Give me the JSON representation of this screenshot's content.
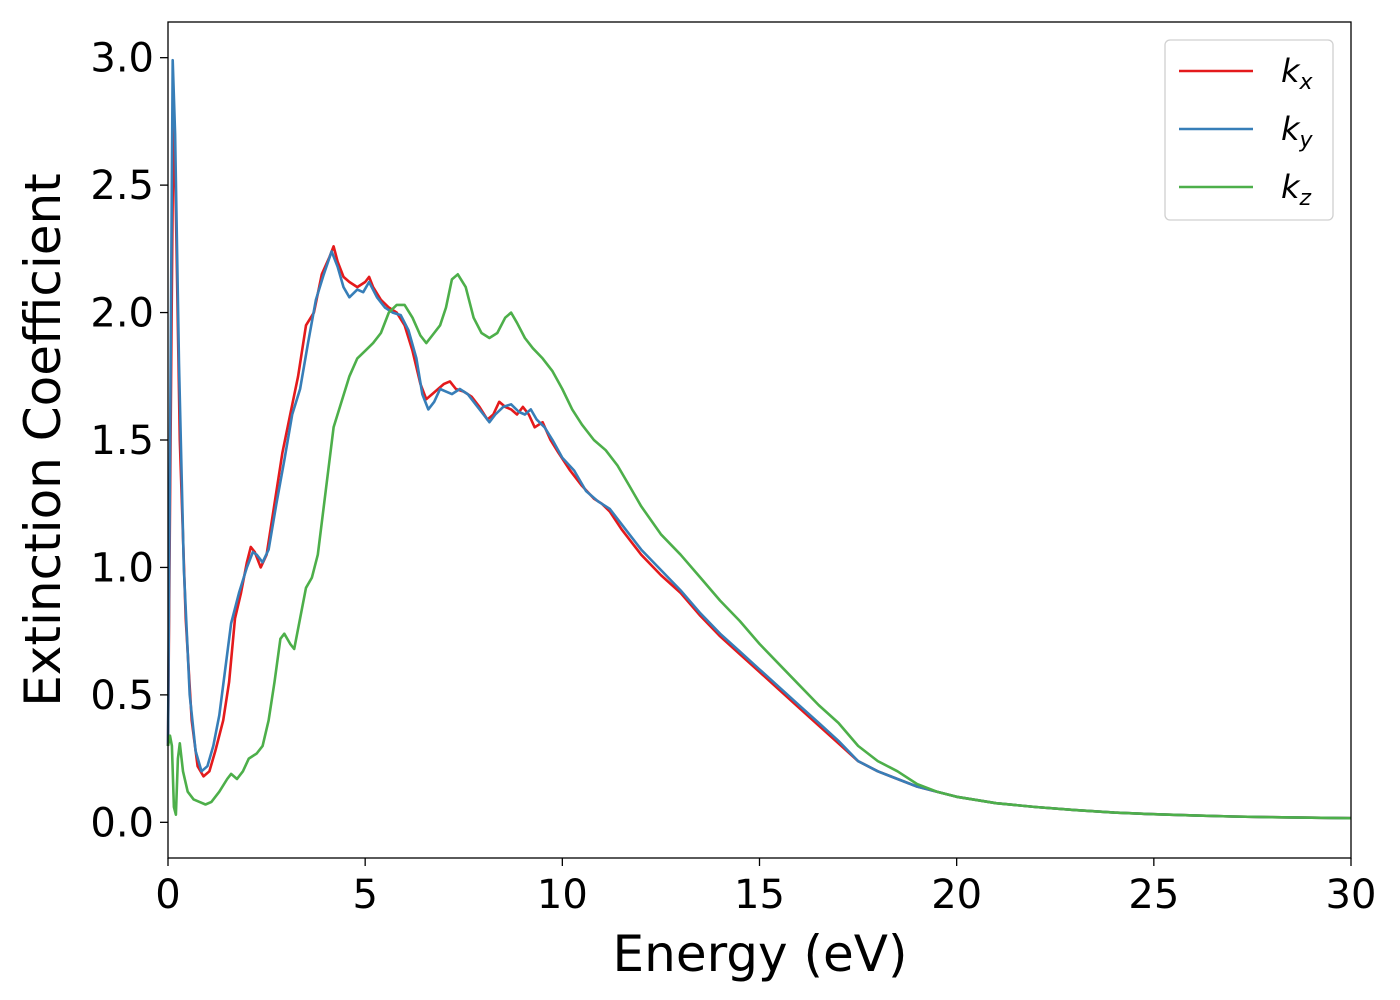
{
  "chart_data": {
    "type": "line",
    "xlabel": "Energy (eV)",
    "ylabel": "Extinction Coefficient",
    "xlim": [
      0,
      30
    ],
    "ylim": [
      -0.14,
      3.14
    ],
    "xticks": [
      0,
      5,
      10,
      15,
      20,
      25,
      30
    ],
    "yticks": [
      0.0,
      0.5,
      1.0,
      1.5,
      2.0,
      2.5,
      3.0
    ],
    "xtick_labels": [
      "0",
      "5",
      "10",
      "15",
      "20",
      "25",
      "30"
    ],
    "ytick_labels": [
      "0.0",
      "0.5",
      "1.0",
      "1.5",
      "2.0",
      "2.5",
      "3.0"
    ],
    "grid": false,
    "legend_position": "top-right",
    "series": [
      {
        "name": "k_x",
        "legend_main": "k",
        "legend_sub": "x",
        "color": "#e41a1c",
        "points": [
          [
            0,
            0.3
          ],
          [
            0.08,
            1.8
          ],
          [
            0.14,
            2.82
          ],
          [
            0.2,
            2.4
          ],
          [
            0.3,
            1.5
          ],
          [
            0.45,
            0.8
          ],
          [
            0.6,
            0.4
          ],
          [
            0.75,
            0.22
          ],
          [
            0.9,
            0.18
          ],
          [
            1.05,
            0.2
          ],
          [
            1.2,
            0.28
          ],
          [
            1.4,
            0.4
          ],
          [
            1.55,
            0.55
          ],
          [
            1.7,
            0.8
          ],
          [
            1.85,
            0.9
          ],
          [
            2.0,
            1.02
          ],
          [
            2.1,
            1.08
          ],
          [
            2.2,
            1.06
          ],
          [
            2.35,
            1.0
          ],
          [
            2.5,
            1.05
          ],
          [
            2.7,
            1.25
          ],
          [
            2.9,
            1.45
          ],
          [
            3.1,
            1.6
          ],
          [
            3.3,
            1.75
          ],
          [
            3.5,
            1.95
          ],
          [
            3.7,
            2.0
          ],
          [
            3.9,
            2.15
          ],
          [
            4.1,
            2.22
          ],
          [
            4.2,
            2.26
          ],
          [
            4.3,
            2.2
          ],
          [
            4.45,
            2.14
          ],
          [
            4.6,
            2.12
          ],
          [
            4.8,
            2.1
          ],
          [
            5.0,
            2.12
          ],
          [
            5.1,
            2.14
          ],
          [
            5.2,
            2.1
          ],
          [
            5.4,
            2.05
          ],
          [
            5.6,
            2.02
          ],
          [
            5.8,
            2.0
          ],
          [
            6.0,
            1.95
          ],
          [
            6.2,
            1.85
          ],
          [
            6.4,
            1.72
          ],
          [
            6.55,
            1.66
          ],
          [
            6.7,
            1.68
          ],
          [
            6.85,
            1.7
          ],
          [
            7.0,
            1.72
          ],
          [
            7.15,
            1.73
          ],
          [
            7.3,
            1.7
          ],
          [
            7.5,
            1.69
          ],
          [
            7.7,
            1.67
          ],
          [
            7.9,
            1.63
          ],
          [
            8.1,
            1.58
          ],
          [
            8.25,
            1.6
          ],
          [
            8.4,
            1.65
          ],
          [
            8.55,
            1.63
          ],
          [
            8.7,
            1.62
          ],
          [
            8.85,
            1.6
          ],
          [
            9.0,
            1.63
          ],
          [
            9.15,
            1.6
          ],
          [
            9.3,
            1.55
          ],
          [
            9.5,
            1.57
          ],
          [
            9.7,
            1.5
          ],
          [
            9.9,
            1.45
          ],
          [
            10.2,
            1.38
          ],
          [
            10.5,
            1.32
          ],
          [
            10.8,
            1.27
          ],
          [
            11.0,
            1.25
          ],
          [
            11.2,
            1.22
          ],
          [
            11.5,
            1.15
          ],
          [
            12.0,
            1.05
          ],
          [
            12.5,
            0.97
          ],
          [
            13.0,
            0.9
          ],
          [
            13.5,
            0.81
          ],
          [
            14.0,
            0.73
          ],
          [
            14.5,
            0.66
          ],
          [
            15.0,
            0.59
          ],
          [
            15.5,
            0.52
          ],
          [
            16.0,
            0.45
          ],
          [
            16.5,
            0.38
          ],
          [
            17.0,
            0.31
          ],
          [
            17.5,
            0.24
          ],
          [
            18.0,
            0.2
          ],
          [
            18.5,
            0.17
          ],
          [
            19.0,
            0.14
          ],
          [
            19.5,
            0.12
          ],
          [
            20.0,
            0.1
          ],
          [
            21.0,
            0.075
          ],
          [
            22.0,
            0.06
          ],
          [
            23.0,
            0.048
          ],
          [
            24.0,
            0.038
          ],
          [
            25.0,
            0.032
          ],
          [
            26.0,
            0.027
          ],
          [
            27.0,
            0.023
          ],
          [
            28.0,
            0.02
          ],
          [
            29.0,
            0.018
          ],
          [
            30.0,
            0.016
          ]
        ]
      },
      {
        "name": "k_y",
        "legend_main": "k",
        "legend_sub": "y",
        "color": "#377eb8",
        "points": [
          [
            0,
            0.3
          ],
          [
            0.07,
            1.9
          ],
          [
            0.12,
            2.99
          ],
          [
            0.18,
            2.7
          ],
          [
            0.28,
            1.8
          ],
          [
            0.4,
            1.0
          ],
          [
            0.55,
            0.5
          ],
          [
            0.7,
            0.28
          ],
          [
            0.85,
            0.2
          ],
          [
            1.0,
            0.22
          ],
          [
            1.15,
            0.3
          ],
          [
            1.3,
            0.42
          ],
          [
            1.45,
            0.6
          ],
          [
            1.6,
            0.78
          ],
          [
            1.8,
            0.9
          ],
          [
            2.0,
            1.0
          ],
          [
            2.15,
            1.06
          ],
          [
            2.25,
            1.05
          ],
          [
            2.4,
            1.02
          ],
          [
            2.55,
            1.07
          ],
          [
            2.75,
            1.25
          ],
          [
            2.95,
            1.42
          ],
          [
            3.15,
            1.6
          ],
          [
            3.35,
            1.7
          ],
          [
            3.55,
            1.88
          ],
          [
            3.75,
            2.05
          ],
          [
            3.95,
            2.15
          ],
          [
            4.15,
            2.24
          ],
          [
            4.3,
            2.18
          ],
          [
            4.45,
            2.1
          ],
          [
            4.6,
            2.06
          ],
          [
            4.8,
            2.09
          ],
          [
            4.95,
            2.08
          ],
          [
            5.1,
            2.12
          ],
          [
            5.3,
            2.06
          ],
          [
            5.5,
            2.02
          ],
          [
            5.7,
            2.0
          ],
          [
            5.9,
            1.99
          ],
          [
            6.1,
            1.93
          ],
          [
            6.3,
            1.82
          ],
          [
            6.45,
            1.68
          ],
          [
            6.6,
            1.62
          ],
          [
            6.75,
            1.65
          ],
          [
            6.9,
            1.7
          ],
          [
            7.05,
            1.69
          ],
          [
            7.2,
            1.68
          ],
          [
            7.4,
            1.7
          ],
          [
            7.6,
            1.68
          ],
          [
            7.8,
            1.64
          ],
          [
            8.0,
            1.6
          ],
          [
            8.15,
            1.57
          ],
          [
            8.3,
            1.6
          ],
          [
            8.5,
            1.63
          ],
          [
            8.7,
            1.64
          ],
          [
            8.9,
            1.61
          ],
          [
            9.05,
            1.6
          ],
          [
            9.2,
            1.62
          ],
          [
            9.35,
            1.58
          ],
          [
            9.55,
            1.55
          ],
          [
            9.75,
            1.5
          ],
          [
            10.0,
            1.43
          ],
          [
            10.3,
            1.38
          ],
          [
            10.6,
            1.3
          ],
          [
            10.9,
            1.26
          ],
          [
            11.2,
            1.23
          ],
          [
            11.6,
            1.15
          ],
          [
            12.0,
            1.07
          ],
          [
            12.5,
            0.99
          ],
          [
            13.0,
            0.91
          ],
          [
            13.5,
            0.82
          ],
          [
            14.0,
            0.74
          ],
          [
            14.5,
            0.67
          ],
          [
            15.0,
            0.6
          ],
          [
            15.5,
            0.53
          ],
          [
            16.0,
            0.46
          ],
          [
            16.5,
            0.39
          ],
          [
            17.0,
            0.32
          ],
          [
            17.5,
            0.24
          ],
          [
            18.0,
            0.2
          ],
          [
            18.5,
            0.17
          ],
          [
            19.0,
            0.14
          ],
          [
            19.5,
            0.12
          ],
          [
            20.0,
            0.1
          ],
          [
            21.0,
            0.075
          ],
          [
            22.0,
            0.06
          ],
          [
            23.0,
            0.048
          ],
          [
            24.0,
            0.038
          ],
          [
            25.0,
            0.032
          ],
          [
            26.0,
            0.027
          ],
          [
            27.0,
            0.023
          ],
          [
            28.0,
            0.02
          ],
          [
            29.0,
            0.018
          ],
          [
            30.0,
            0.016
          ]
        ]
      },
      {
        "name": "k_z",
        "legend_main": "k",
        "legend_sub": "z",
        "color": "#4daf4a",
        "points": [
          [
            0,
            0.3
          ],
          [
            0.05,
            0.34
          ],
          [
            0.1,
            0.3
          ],
          [
            0.15,
            0.06
          ],
          [
            0.2,
            0.03
          ],
          [
            0.25,
            0.25
          ],
          [
            0.3,
            0.31
          ],
          [
            0.38,
            0.2
          ],
          [
            0.5,
            0.12
          ],
          [
            0.65,
            0.09
          ],
          [
            0.8,
            0.08
          ],
          [
            0.95,
            0.07
          ],
          [
            1.1,
            0.08
          ],
          [
            1.3,
            0.12
          ],
          [
            1.5,
            0.17
          ],
          [
            1.6,
            0.19
          ],
          [
            1.75,
            0.17
          ],
          [
            1.9,
            0.2
          ],
          [
            2.05,
            0.25
          ],
          [
            2.25,
            0.27
          ],
          [
            2.4,
            0.3
          ],
          [
            2.55,
            0.4
          ],
          [
            2.7,
            0.55
          ],
          [
            2.85,
            0.72
          ],
          [
            2.95,
            0.74
          ],
          [
            3.1,
            0.7
          ],
          [
            3.2,
            0.68
          ],
          [
            3.35,
            0.8
          ],
          [
            3.5,
            0.92
          ],
          [
            3.65,
            0.96
          ],
          [
            3.8,
            1.05
          ],
          [
            4.0,
            1.3
          ],
          [
            4.2,
            1.55
          ],
          [
            4.4,
            1.65
          ],
          [
            4.6,
            1.75
          ],
          [
            4.8,
            1.82
          ],
          [
            5.0,
            1.85
          ],
          [
            5.2,
            1.88
          ],
          [
            5.4,
            1.92
          ],
          [
            5.6,
            2.0
          ],
          [
            5.8,
            2.03
          ],
          [
            6.0,
            2.03
          ],
          [
            6.2,
            1.98
          ],
          [
            6.4,
            1.91
          ],
          [
            6.55,
            1.88
          ],
          [
            6.7,
            1.91
          ],
          [
            6.9,
            1.95
          ],
          [
            7.05,
            2.02
          ],
          [
            7.2,
            2.13
          ],
          [
            7.35,
            2.15
          ],
          [
            7.55,
            2.1
          ],
          [
            7.75,
            1.98
          ],
          [
            7.95,
            1.92
          ],
          [
            8.15,
            1.9
          ],
          [
            8.35,
            1.92
          ],
          [
            8.55,
            1.98
          ],
          [
            8.7,
            2.0
          ],
          [
            8.85,
            1.96
          ],
          [
            9.05,
            1.9
          ],
          [
            9.25,
            1.86
          ],
          [
            9.5,
            1.82
          ],
          [
            9.75,
            1.77
          ],
          [
            10.0,
            1.7
          ],
          [
            10.25,
            1.62
          ],
          [
            10.5,
            1.56
          ],
          [
            10.8,
            1.5
          ],
          [
            11.1,
            1.46
          ],
          [
            11.4,
            1.4
          ],
          [
            11.7,
            1.32
          ],
          [
            12.0,
            1.24
          ],
          [
            12.5,
            1.13
          ],
          [
            13.0,
            1.05
          ],
          [
            13.5,
            0.96
          ],
          [
            14.0,
            0.87
          ],
          [
            14.5,
            0.79
          ],
          [
            15.0,
            0.7
          ],
          [
            15.5,
            0.62
          ],
          [
            16.0,
            0.54
          ],
          [
            16.5,
            0.46
          ],
          [
            17.0,
            0.39
          ],
          [
            17.5,
            0.3
          ],
          [
            18.0,
            0.24
          ],
          [
            18.5,
            0.2
          ],
          [
            19.0,
            0.15
          ],
          [
            19.5,
            0.12
          ],
          [
            20.0,
            0.1
          ],
          [
            21.0,
            0.075
          ],
          [
            22.0,
            0.06
          ],
          [
            23.0,
            0.048
          ],
          [
            24.0,
            0.038
          ],
          [
            25.0,
            0.032
          ],
          [
            26.0,
            0.027
          ],
          [
            27.0,
            0.023
          ],
          [
            28.0,
            0.02
          ],
          [
            29.0,
            0.018
          ],
          [
            30.0,
            0.016
          ]
        ]
      }
    ]
  }
}
